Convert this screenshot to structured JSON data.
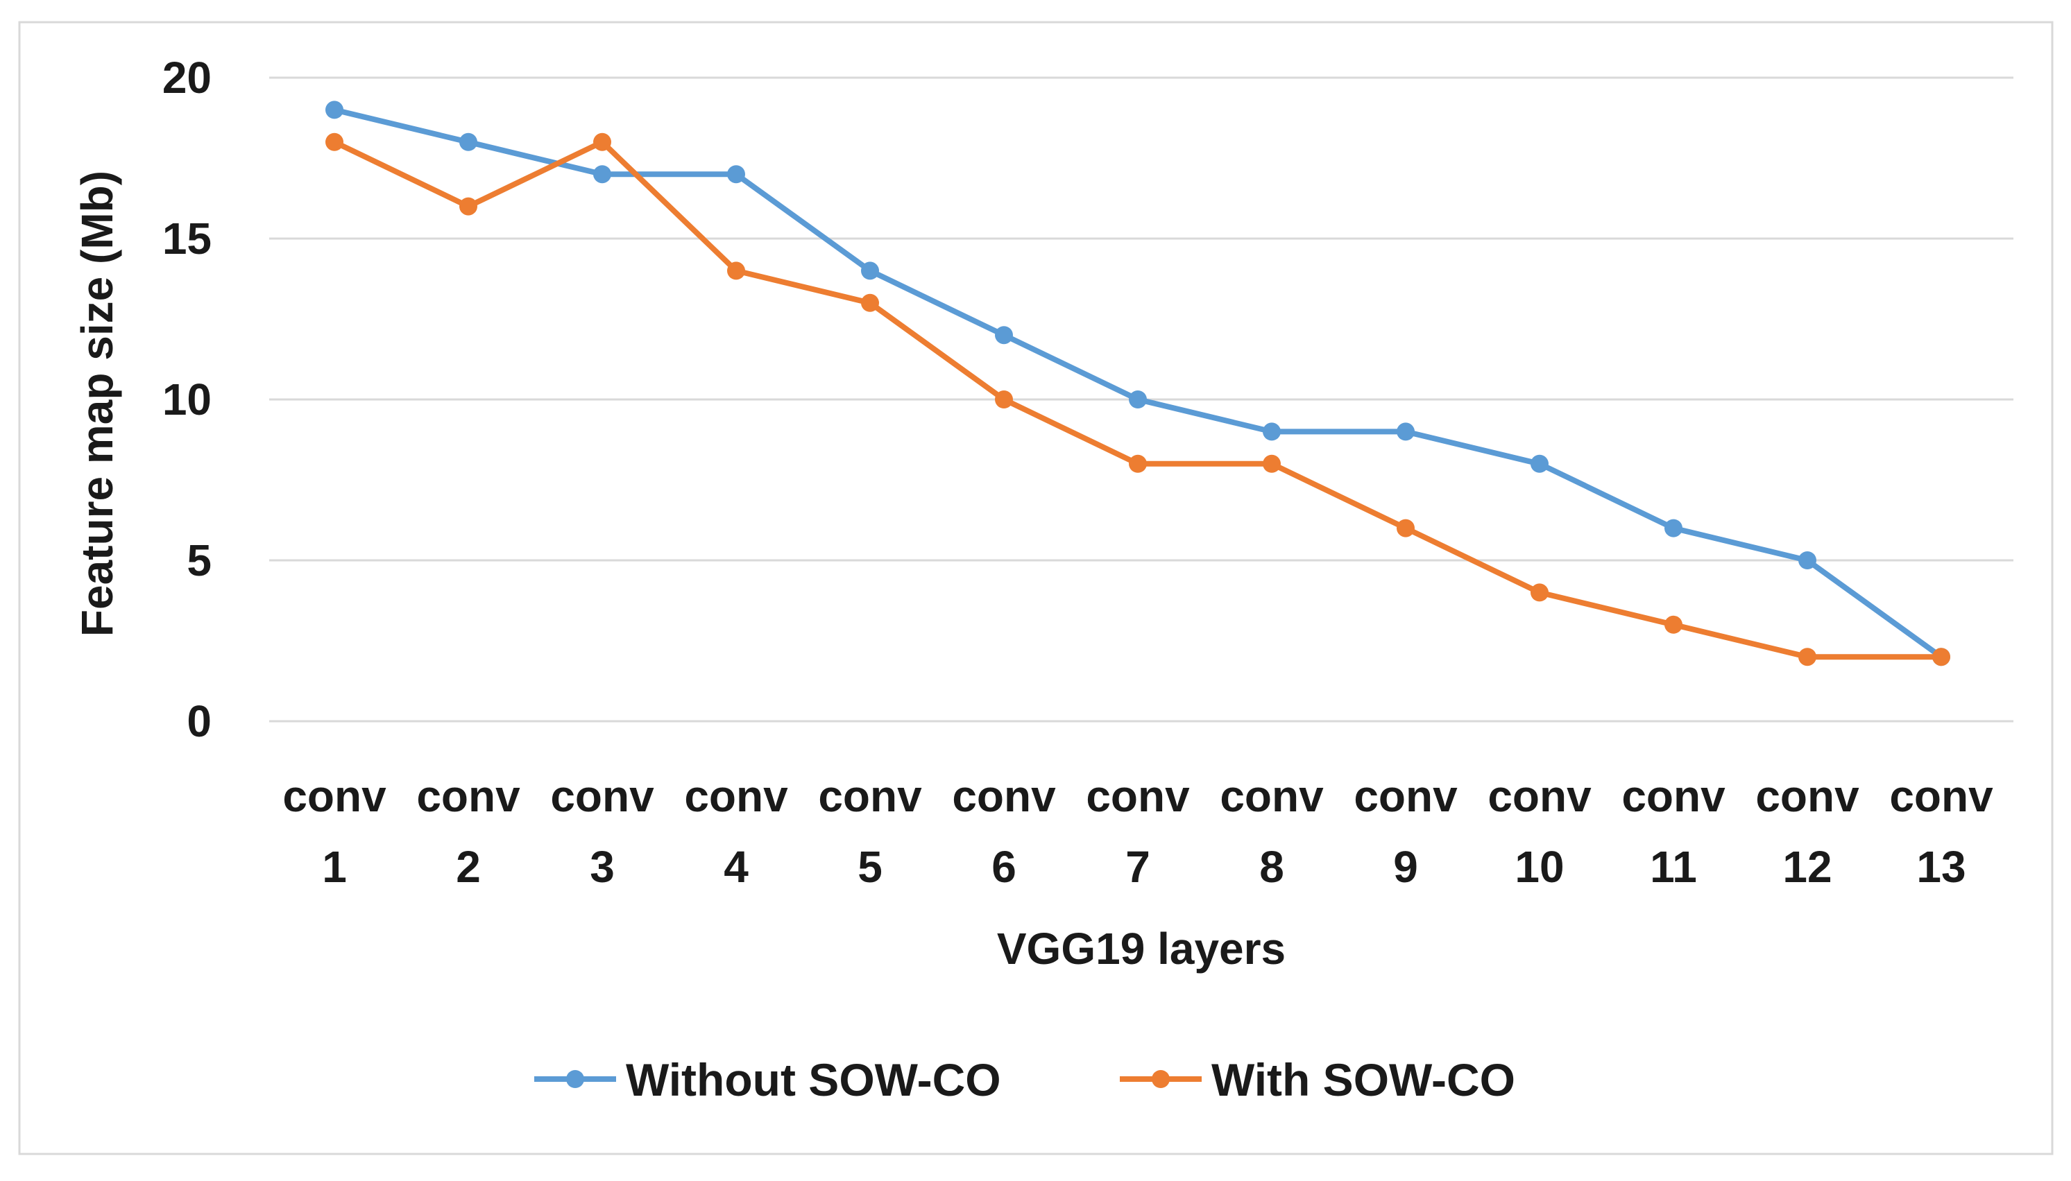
{
  "chart_data": {
    "type": "line",
    "title": "",
    "xlabel": "VGG19 layers",
    "ylabel": "Feature map size (Mb)",
    "ylim": [
      0,
      20
    ],
    "yticks": [
      0,
      5,
      10,
      15,
      20
    ],
    "grid": true,
    "legend_position": "bottom",
    "categories": [
      [
        "conv",
        "1"
      ],
      [
        "conv",
        "2"
      ],
      [
        "conv",
        "3"
      ],
      [
        "conv",
        "4"
      ],
      [
        "conv",
        "5"
      ],
      [
        "conv",
        "6"
      ],
      [
        "conv",
        "7"
      ],
      [
        "conv",
        "8"
      ],
      [
        "conv",
        "9"
      ],
      [
        "conv",
        "10"
      ],
      [
        "conv",
        "11"
      ],
      [
        "conv",
        "12"
      ],
      [
        "conv",
        "13"
      ]
    ],
    "series": [
      {
        "name": "Without SOW-CO",
        "color": "#5B9BD5",
        "values": [
          19,
          18,
          17,
          17,
          14,
          12,
          10,
          9,
          9,
          8,
          6,
          5,
          2
        ]
      },
      {
        "name": "With SOW-CO",
        "color": "#ED7D31",
        "values": [
          18,
          16,
          18,
          14,
          13,
          10,
          8,
          8,
          6,
          4,
          3,
          2,
          2
        ]
      }
    ]
  }
}
